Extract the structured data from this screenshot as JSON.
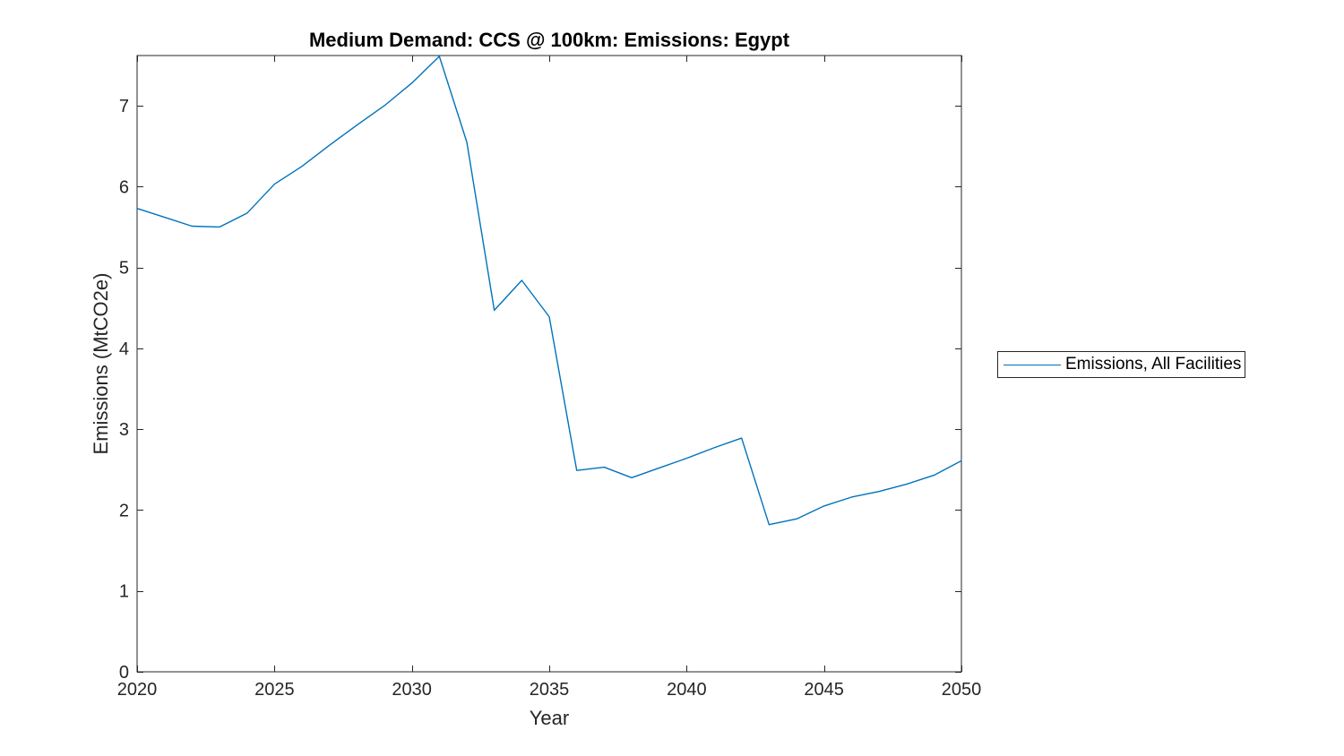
{
  "chart_data": {
    "type": "line",
    "title": "Medium Demand: CCS @ 100km: Emissions: Egypt",
    "xlabel": "Year",
    "ylabel": "Emissions (MtCO2e)",
    "x": [
      2020,
      2021,
      2022,
      2023,
      2024,
      2025,
      2026,
      2027,
      2028,
      2029,
      2030,
      2031,
      2032,
      2033,
      2034,
      2035,
      2036,
      2037,
      2038,
      2039,
      2040,
      2041,
      2042,
      2043,
      2044,
      2045,
      2046,
      2047,
      2048,
      2049,
      2050
    ],
    "series": [
      {
        "name": "Emissions, All Facilities",
        "color": "#0072BD",
        "values": [
          5.73,
          5.62,
          5.51,
          5.5,
          5.67,
          6.03,
          6.25,
          6.51,
          6.76,
          7.0,
          7.28,
          7.61,
          6.55,
          4.47,
          4.84,
          4.39,
          2.49,
          2.53,
          2.4,
          2.52,
          2.64,
          2.77,
          2.89,
          1.82,
          1.89,
          2.05,
          2.16,
          2.23,
          2.32,
          2.43,
          2.61
        ]
      }
    ],
    "xlim": [
      2020,
      2050
    ],
    "ylim": [
      0,
      7.62
    ],
    "xticks": [
      2020,
      2025,
      2030,
      2035,
      2040,
      2045,
      2050
    ],
    "yticks": [
      0,
      1,
      2,
      3,
      4,
      5,
      6,
      7
    ],
    "grid": false,
    "box": true,
    "tick_direction": "in",
    "legend_position": "right-outside"
  },
  "legend": {
    "entry_label": "Emissions, All Facilities"
  },
  "colors": {
    "line": "#0072BD",
    "axis": "#262626",
    "tick_label": "#262626",
    "title": "#000000",
    "background": "#ffffff"
  }
}
